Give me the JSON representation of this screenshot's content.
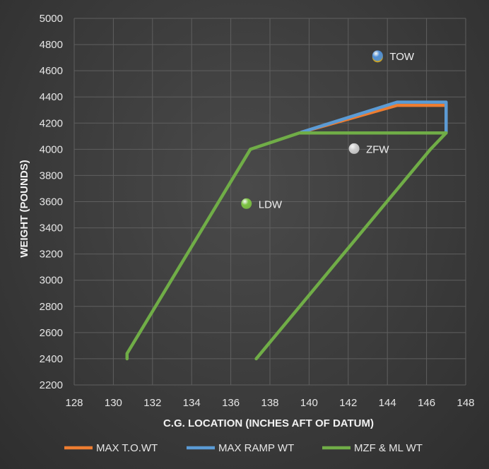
{
  "chart_data": {
    "type": "scatter",
    "xlabel": "C.G. LOCATION (INCHES AFT OF DATUM)",
    "ylabel": "WEIGHT (POUNDS)",
    "xlim": [
      128,
      148
    ],
    "ylim": [
      2200,
      5000
    ],
    "xticks": [
      "128",
      "130",
      "132",
      "134",
      "136",
      "138",
      "140",
      "142",
      "144",
      "146",
      "148"
    ],
    "yticks": [
      "2200",
      "2400",
      "2600",
      "2800",
      "3000",
      "3200",
      "3400",
      "3600",
      "3800",
      "4000",
      "4200",
      "4400",
      "4600",
      "4800",
      "5000"
    ],
    "grid": true,
    "legend_position": "bottom",
    "series": [
      {
        "name": "MAX T.O.WT",
        "color": "#ed7d31",
        "points": [
          [
            139.6,
            4130
          ],
          [
            144.5,
            4336
          ],
          [
            147.0,
            4336
          ],
          [
            147.0,
            4125
          ]
        ]
      },
      {
        "name": "MAX RAMP WT",
        "color": "#5b9bd5",
        "points": [
          [
            139.6,
            4130
          ],
          [
            144.5,
            4360
          ],
          [
            147.0,
            4360
          ],
          [
            147.0,
            4125
          ]
        ]
      },
      {
        "name": "MZF & ML WT",
        "color": "#70ad47",
        "points": [
          [
            130.7,
            2400
          ],
          [
            130.7,
            2440
          ],
          [
            137.0,
            4000
          ],
          [
            139.5,
            4125
          ],
          [
            147.0,
            4125
          ],
          [
            146.2,
            4000
          ],
          [
            137.3,
            2400
          ]
        ]
      }
    ],
    "markers": [
      {
        "label": "TOW",
        "x": 143.5,
        "y": 4715,
        "color": "#4f8fd6",
        "ring": "#c9a227"
      },
      {
        "label": "ZFW",
        "x": 142.3,
        "y": 4005,
        "color": "#cfcfcf",
        "ring": ""
      },
      {
        "label": "LDW",
        "x": 136.8,
        "y": 3585,
        "color": "#7cc242",
        "ring": ""
      }
    ]
  }
}
